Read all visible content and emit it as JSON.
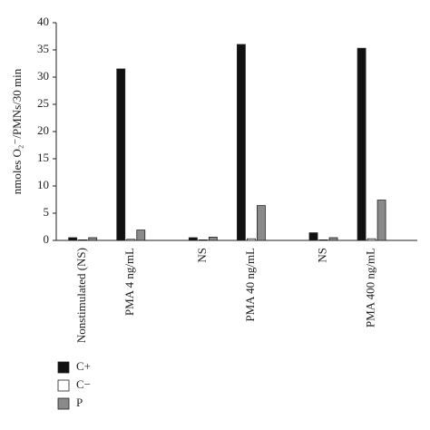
{
  "chart_data": {
    "type": "bar",
    "y_label": "nmoles O₂⁻/PMNs/30 min",
    "categories": [
      "Nonstimulated (NS)",
      "PMA 4 ng/mL",
      "NS",
      "PMA 40 ng/mL",
      "NS",
      "PMA 400 ng/mL"
    ],
    "series": [
      {
        "name": "C+",
        "color": "#111111",
        "values": [
          0.5,
          31.5,
          0.5,
          36,
          1.4,
          35.3
        ]
      },
      {
        "name": "C−",
        "color": "#ffffff",
        "values": [
          0.1,
          0.2,
          0.1,
          0.3,
          0.1,
          0.3
        ]
      },
      {
        "name": "P",
        "color": "#8a8a8a",
        "values": [
          0.5,
          1.9,
          0.6,
          6.4,
          0.5,
          7.4
        ]
      }
    ],
    "ylim": [
      0,
      40
    ],
    "yticks": [
      0,
      5,
      10,
      15,
      20,
      25,
      30,
      35,
      40
    ]
  }
}
